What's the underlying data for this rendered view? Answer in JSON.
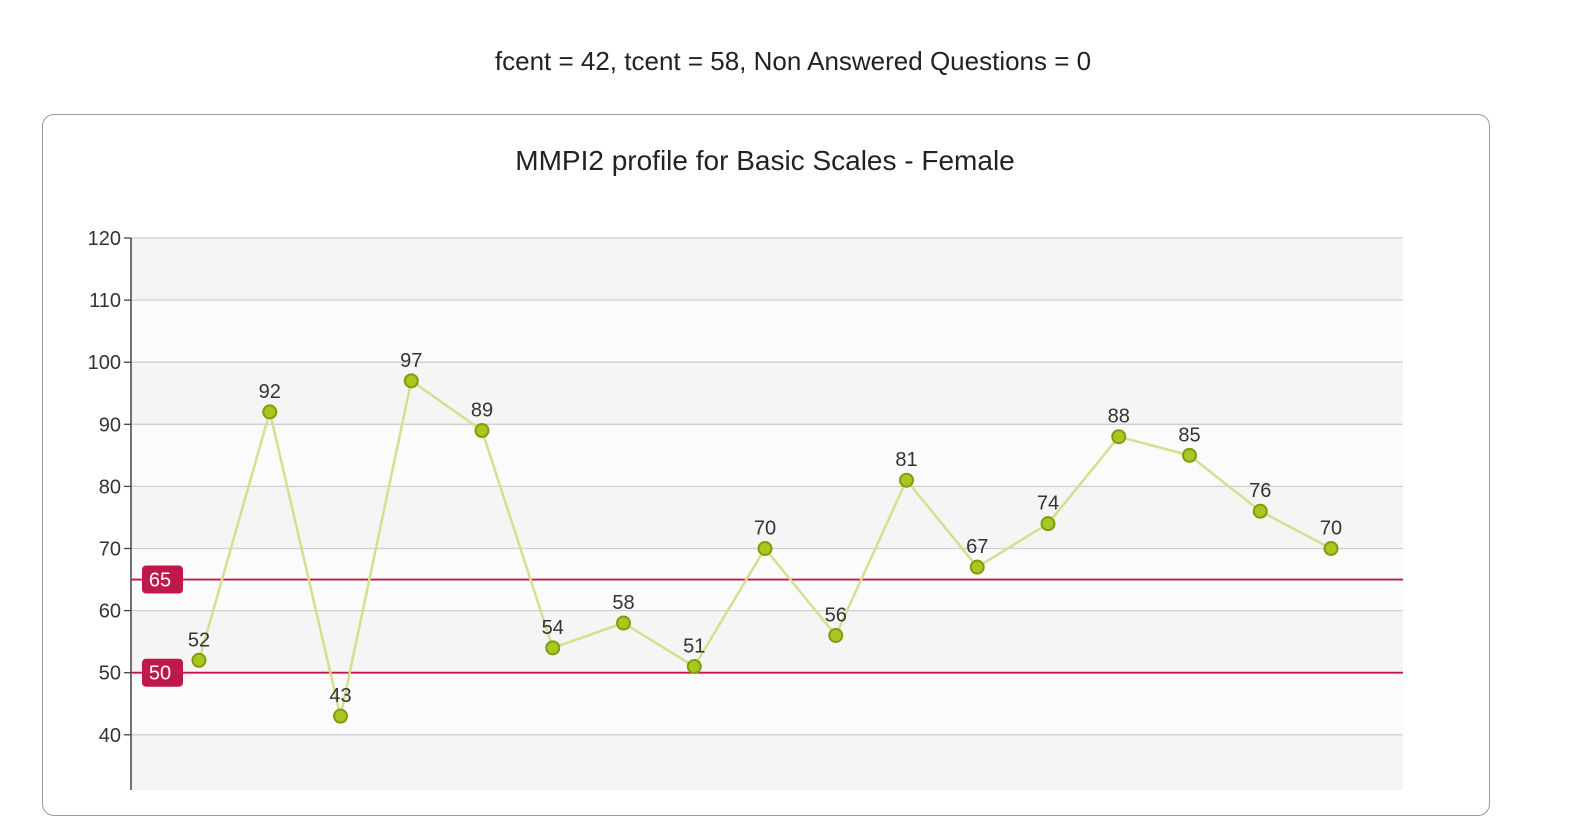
{
  "header": {
    "summary": "fcent = 42, tcent = 58, Non Answered Questions = 0"
  },
  "chart_data": {
    "type": "line",
    "title": "MMPI2 profile for Basic Scales - Female",
    "ylim": [
      30,
      120
    ],
    "y_ticks": [
      40,
      50,
      60,
      70,
      80,
      90,
      100,
      110,
      120
    ],
    "grid": true,
    "series": [
      {
        "values": [
          52,
          92,
          43,
          97,
          89,
          54,
          58,
          51,
          70,
          56,
          81,
          67,
          74,
          88,
          85,
          76,
          70
        ],
        "color": "#9cbd1e",
        "line_color": "#d4e08e"
      }
    ],
    "reference_lines": [
      {
        "value": 65,
        "label": "65",
        "color": "#c0184a"
      },
      {
        "value": 50,
        "label": "50",
        "color": "#c0184a"
      }
    ]
  }
}
